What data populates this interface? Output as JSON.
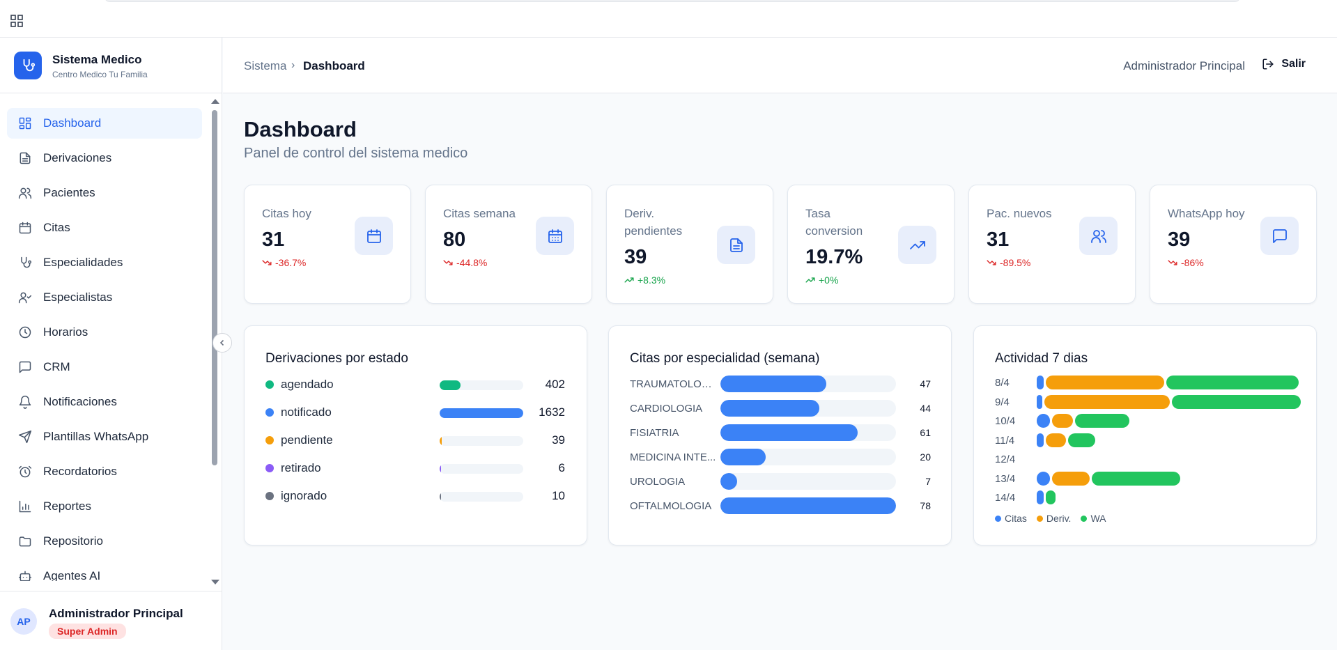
{
  "app": {
    "title": "Sistema Medico",
    "subtitle": "Centro Medico Tu Familia"
  },
  "colors": {
    "primary": "#2563eb",
    "bar_blue": "#3b82f6",
    "orange": "#f59e0b",
    "green": "#22c55e",
    "teal": "#10b981",
    "purple": "#8b5cf6",
    "gray": "#6b7280",
    "negative": "#dc2626",
    "positive": "#16a34a"
  },
  "sidebar": {
    "items": [
      {
        "label": "Dashboard",
        "icon": "dashboard-icon",
        "active": true
      },
      {
        "label": "Derivaciones",
        "icon": "document-icon"
      },
      {
        "label": "Pacientes",
        "icon": "users-icon"
      },
      {
        "label": "Citas",
        "icon": "calendar-icon"
      },
      {
        "label": "Especialidades",
        "icon": "stethoscope-icon"
      },
      {
        "label": "Especialistas",
        "icon": "user-check-icon"
      },
      {
        "label": "Horarios",
        "icon": "clock-icon"
      },
      {
        "label": "CRM",
        "icon": "message-icon"
      },
      {
        "label": "Notificaciones",
        "icon": "bell-icon"
      },
      {
        "label": "Plantillas WhatsApp",
        "icon": "send-icon"
      },
      {
        "label": "Recordatorios",
        "icon": "alarm-icon"
      },
      {
        "label": "Reportes",
        "icon": "bar-chart-icon"
      },
      {
        "label": "Repositorio",
        "icon": "folder-icon"
      },
      {
        "label": "Agentes AI",
        "icon": "bot-icon"
      }
    ],
    "user": {
      "initials": "AP",
      "name": "Administrador Principal",
      "role": "Super Admin"
    }
  },
  "header": {
    "breadcrumb_root": "Sistema",
    "breadcrumb_sep": "›",
    "breadcrumb_current": "Dashboard",
    "user": "Administrador Principal",
    "logout": "Salir"
  },
  "page": {
    "title": "Dashboard",
    "subtitle": "Panel de control del sistema medico"
  },
  "stats": [
    {
      "label": "Citas hoy",
      "value": "31",
      "trend": "-36.7%",
      "direction": "down",
      "icon": "calendar-icon"
    },
    {
      "label": "Citas semana",
      "value": "80",
      "trend": "-44.8%",
      "direction": "down",
      "icon": "calendar-days-icon"
    },
    {
      "label": "Deriv. pendientes",
      "value": "39",
      "trend": "+8.3%",
      "direction": "up",
      "icon": "file-text-icon"
    },
    {
      "label": "Tasa conversion",
      "value": "19.7%",
      "trend": "+0%",
      "direction": "up",
      "icon": "trending-up-icon"
    },
    {
      "label": "Pac. nuevos",
      "value": "31",
      "trend": "-89.5%",
      "direction": "down",
      "icon": "users-icon"
    },
    {
      "label": "WhatsApp hoy",
      "value": "39",
      "trend": "-86%",
      "direction": "down",
      "icon": "chat-icon"
    }
  ],
  "derivaciones": {
    "title": "Derivaciones por estado",
    "rows": [
      {
        "label": "agendado",
        "value": 402,
        "display": "402",
        "color": "#10b981"
      },
      {
        "label": "notificado",
        "value": 1632,
        "display": "1632",
        "color": "#3b82f6"
      },
      {
        "label": "pendiente",
        "value": 39,
        "display": "39",
        "color": "#f59e0b"
      },
      {
        "label": "retirado",
        "value": 6,
        "display": "6",
        "color": "#8b5cf6"
      },
      {
        "label": "ignorado",
        "value": 10,
        "display": "10",
        "color": "#6b7280"
      }
    ]
  },
  "especialidades": {
    "title": "Citas por especialidad (semana)",
    "rows": [
      {
        "label": "TRAUMATOLOG...",
        "value": 47,
        "display": "47"
      },
      {
        "label": "CARDIOLOGIA",
        "value": 44,
        "display": "44"
      },
      {
        "label": "FISIATRIA",
        "value": 61,
        "display": "61"
      },
      {
        "label": "MEDICINA INTE...",
        "value": 20,
        "display": "20"
      },
      {
        "label": "UROLOGIA",
        "value": 7,
        "display": "7"
      },
      {
        "label": "OFTALMOLOGIA",
        "value": 78,
        "display": "78"
      }
    ]
  },
  "actividad": {
    "title": "Actividad 7 dias",
    "legend": [
      "Citas",
      "Deriv.",
      "WA"
    ],
    "days": [
      {
        "label": "8/4",
        "citas": 2,
        "deriv": 35,
        "wa": 39
      },
      {
        "label": "9/4",
        "citas": 1,
        "deriv": 37,
        "wa": 38
      },
      {
        "label": "10/4",
        "citas": 4,
        "deriv": 6,
        "wa": 16
      },
      {
        "label": "11/4",
        "citas": 2,
        "deriv": 6,
        "wa": 8
      },
      {
        "label": "12/4",
        "citas": 0,
        "deriv": 0,
        "wa": 0
      },
      {
        "label": "13/4",
        "citas": 4,
        "deriv": 11,
        "wa": 26
      },
      {
        "label": "14/4",
        "citas": 2,
        "deriv": 0,
        "wa": 3
      }
    ]
  }
}
